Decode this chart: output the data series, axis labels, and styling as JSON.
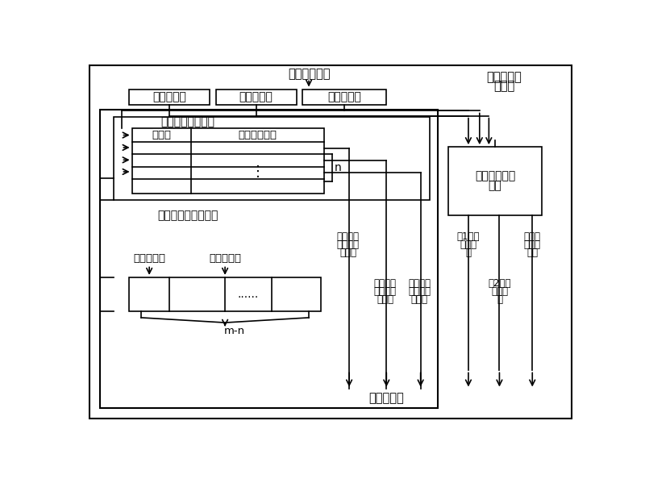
{
  "bg_color": "#ffffff",
  "top_label": "译码后的指令",
  "reg1_label": "源１寄存器",
  "reg2_label": "源２寄存器",
  "reg3_label": "目标寄存器",
  "station_label1": "寄存器重命",
  "station_label2": "名站台",
  "map_table_label": "飞行记分牌映射表",
  "valid_bit_label": "有效位",
  "tag_num_label": "飞行记分牌号",
  "n_label": "n",
  "recovery_label": "飞行记分牌恢复列表",
  "head_ptr_label": "恢复头指针",
  "tail_ptr_label": "恢复尾指针",
  "mn_label": "m-n",
  "rename_logic1": "寄存器重命名",
  "rename_logic2": "逻辑",
  "col1_line1": "源２检查",
  "col1_line2": "的飞行记",
  "col1_line3": "分牌号",
  "col2_line1": "源１检查",
  "col2_line2": "的飞行记",
  "col2_line3": "分牌号",
  "col3_line1": "需要设置",
  "col3_line2": "的飞行记",
  "col3_line3": "分牌号",
  "col4_line1": "源1物理",
  "col4_line2": "寄存器",
  "col4_line3": "号",
  "col5_line1": "源2物理",
  "col5_line2": "寄存器",
  "col5_line3": "号",
  "col6_line1": "目标物",
  "col6_line2": "理寄存",
  "col6_line3": "器号",
  "bottom_label": "送发射站台"
}
